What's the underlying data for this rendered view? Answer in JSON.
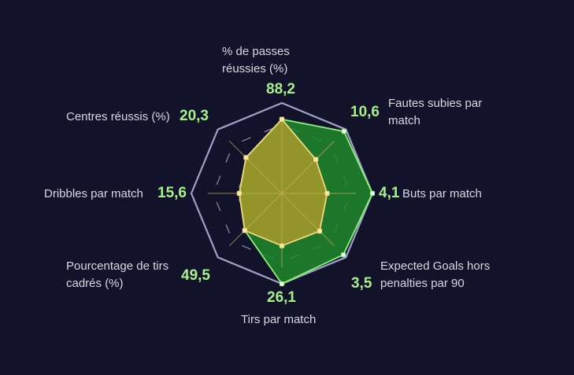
{
  "chart_data": {
    "type": "radar",
    "axes": [
      {
        "label": "% de passes réussies (%)",
        "value": "88,2"
      },
      {
        "label": "Fautes subies par match",
        "value": "10,6"
      },
      {
        "label": "Buts par match",
        "value": "4,1"
      },
      {
        "label": "Expected Goals hors penalties par 90",
        "value": "3,5"
      },
      {
        "label": "Tirs par match",
        "value": "26,1"
      },
      {
        "label": "Pourcentage de tirs cadrés (%)",
        "value": "49,5"
      },
      {
        "label": "Dribbles par match",
        "value": "15,6"
      },
      {
        "label": "Centres réussis (%)",
        "value": "20,3"
      }
    ],
    "range": [
      0,
      1
    ],
    "series": [
      {
        "color": "#8ff07a",
        "fill": "#1f8a2a",
        "values": [
          0.82,
          0.97,
          1.0,
          0.96,
          1.0,
          0.58,
          0.47,
          0.56
        ]
      },
      {
        "color": "#f0d87a",
        "fill": "#a89a2a",
        "values": [
          0.82,
          0.53,
          0.5,
          0.59,
          0.58,
          0.58,
          0.47,
          0.56
        ]
      }
    ],
    "colors": {
      "grid": "#9ea0c8",
      "spokes": "#c8b060",
      "value_text": "#a6f08a"
    }
  }
}
